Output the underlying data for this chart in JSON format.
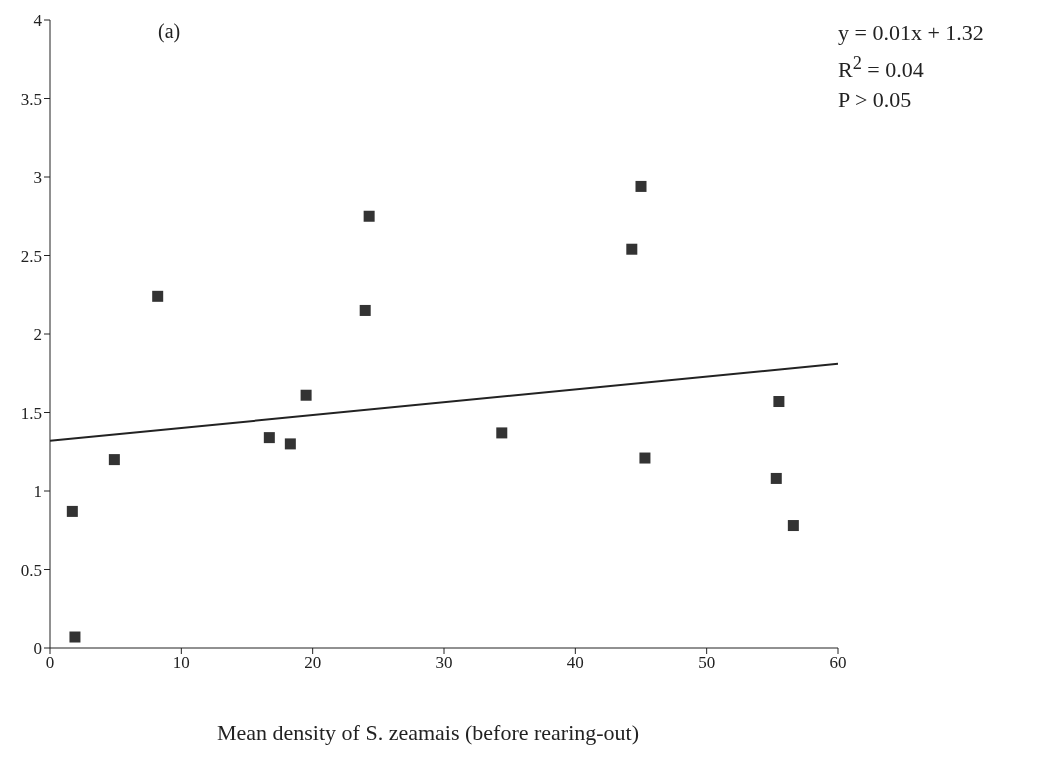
{
  "chart_data": {
    "type": "scatter",
    "xlabel": "Mean density of S. zeamais (before rearing-out)",
    "annotations": [
      "(a)",
      "y = 0.01x + 1.32",
      "R$^{2}$ = 0.04",
      "P > 0.05"
    ],
    "xlim": [
      0,
      60
    ],
    "xticks": [
      0,
      10,
      20,
      30,
      40,
      50,
      60
    ],
    "ylim": [
      0,
      4
    ],
    "yticks": [
      0,
      0.5,
      1,
      1.5,
      2,
      2.5,
      3,
      3.5,
      4
    ],
    "series": [
      {
        "marker": "square",
        "color": "#333333",
        "x": [
          1.7,
          1.9,
          4.9,
          8.2,
          16.7,
          18.3,
          19.5,
          24.0,
          24.3,
          34.4,
          44.3,
          45.0,
          45.3,
          55.5,
          55.3,
          56.6
        ],
        "values": [
          0.87,
          0.07,
          1.2,
          2.24,
          1.34,
          1.3,
          1.61,
          2.15,
          2.75,
          1.37,
          2.54,
          2.94,
          1.21,
          1.57,
          1.08,
          0.78
        ]
      },
      {
        "type": "line",
        "marker": "none",
        "color": "#222222",
        "x": [
          0,
          60
        ],
        "values": [
          1.32,
          1.81
        ]
      }
    ]
  }
}
